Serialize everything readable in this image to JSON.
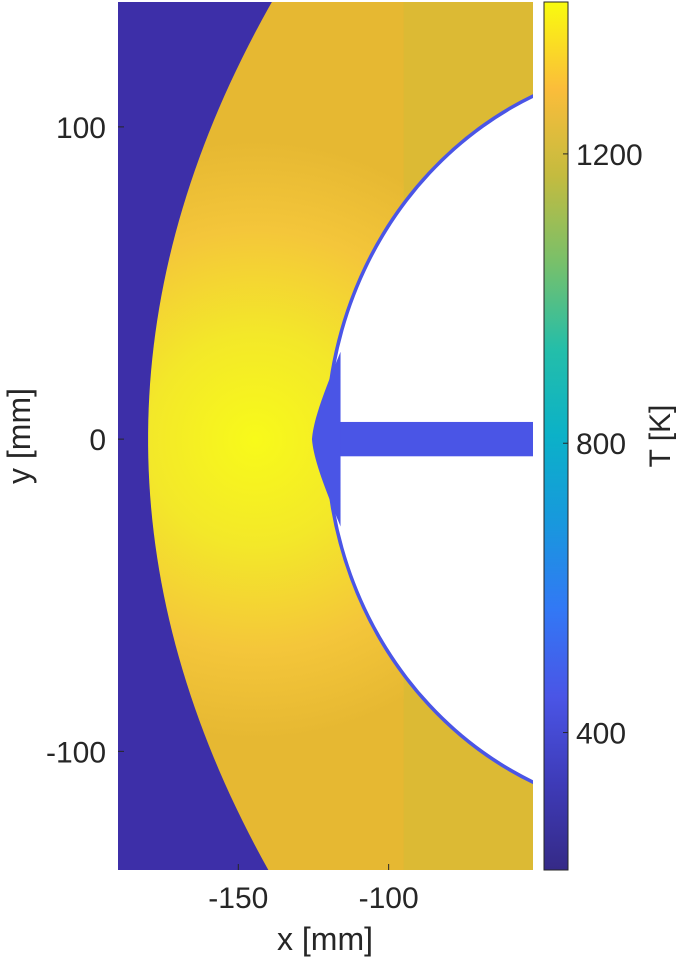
{
  "chart_data": {
    "type": "heatmap",
    "xlabel": "x [mm]",
    "ylabel": "y [mm]",
    "colorbar_label": "T [K]",
    "xlim": [
      -190,
      -52
    ],
    "ylim": [
      -138,
      140
    ],
    "xticks": [
      {
        "value": -150,
        "label": "-150"
      },
      {
        "value": -100,
        "label": "-100"
      }
    ],
    "yticks": [
      {
        "value": 100,
        "label": "100"
      },
      {
        "value": 0,
        "label": "0"
      },
      {
        "value": -100,
        "label": "-100"
      }
    ],
    "colorbar_range": [
      210,
      1410
    ],
    "colorbar_ticks": [
      {
        "value": 1200,
        "label": "1200"
      },
      {
        "value": 800,
        "label": "800"
      },
      {
        "value": 400,
        "label": "400"
      }
    ],
    "colormap": "parula",
    "regions": {
      "freestream_temperature_K": 230,
      "peak_temperature_K": 1400,
      "bow_shock_standoff_x_mm": -180,
      "body_nose_x_mm": -120,
      "body_radius_mm": 120,
      "body_center_x_mm": -4
    },
    "colors": {
      "freestream": "#3d2fa8",
      "shock_layer_peak": "#f5f519",
      "shock_layer_outer": "#f2c133",
      "boundary_layer": "#4a55e6",
      "background": "#ffffff"
    }
  }
}
